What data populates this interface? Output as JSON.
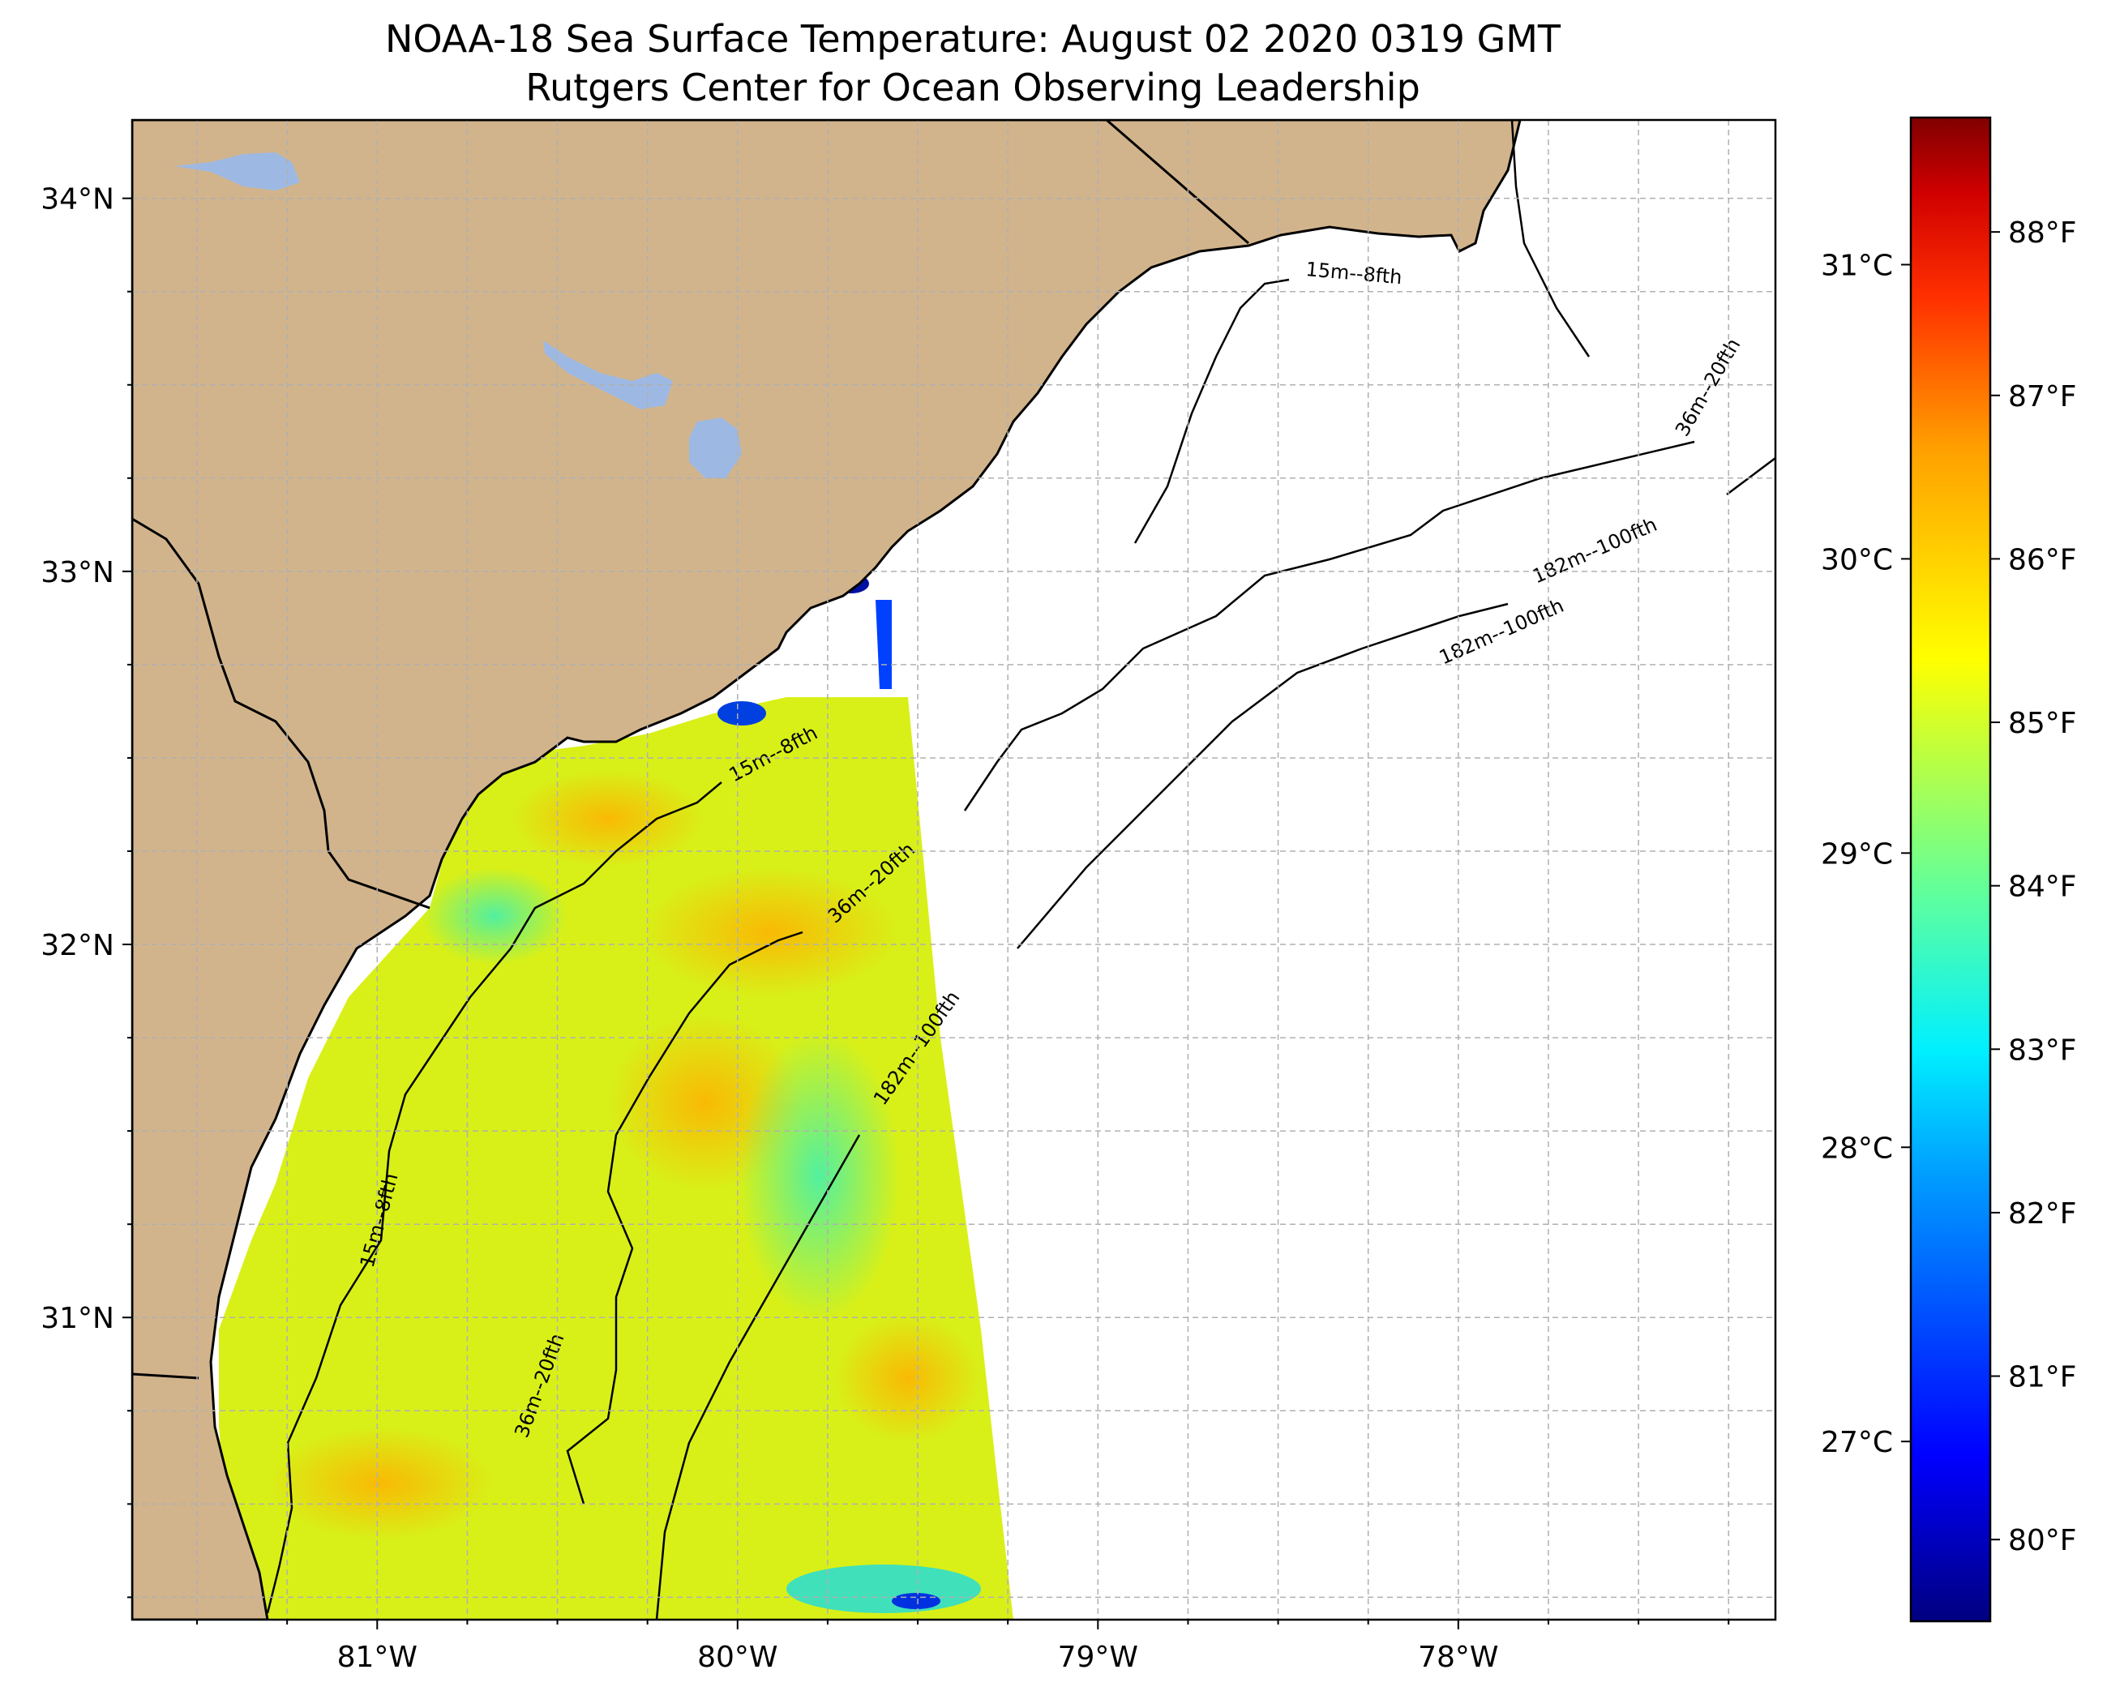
{
  "title": {
    "line1": "NOAA-18 Sea Surface Temperature: August 02 2020 0319 GMT",
    "line2": "Rutgers Center for Ocean Observing Leadership"
  },
  "map": {
    "lat_ticks": [
      "34°N",
      "33°N",
      "32°N",
      "31°N"
    ],
    "lon_ticks": [
      "81°W",
      "80°W",
      "79°W",
      "78°W"
    ],
    "lat_values": [
      34,
      33,
      32,
      31
    ],
    "lon_values": [
      -81,
      -80,
      -79,
      -78
    ],
    "extent": {
      "lon_min": -81.68,
      "lon_max": -77.12,
      "lat_min": 30.19,
      "lat_max": 34.21
    },
    "gridlines": "dashed, light gray",
    "colors": {
      "land": "#d2b48c",
      "lake": "#9db9e3",
      "ocean": "#ffffff",
      "coast": "#000000"
    },
    "contour_labels": [
      "15m--8fth",
      "15m--8fth",
      "15m--8fth",
      "36m--20fth",
      "36m--20fth",
      "36m--20fth",
      "182m--100fth",
      "182m--100fth",
      "182m--100fth"
    ]
  },
  "colorbar": {
    "celsius_ticks": [
      "31°C",
      "30°C",
      "29°C",
      "28°C",
      "27°C"
    ],
    "fahrenheit_ticks": [
      "88°F",
      "87°F",
      "86°F",
      "85°F",
      "84°F",
      "83°F",
      "82°F",
      "81°F",
      "80°F"
    ],
    "fahrenheit_range": [
      79.5,
      88.7
    ],
    "colormap": "jet",
    "colormap_stops": [
      "#000080",
      "#0000ff",
      "#00a0ff",
      "#00f0ff",
      "#5cffa0",
      "#c0ff3c",
      "#ffff00",
      "#ffa000",
      "#ff3000",
      "#d00000",
      "#800000"
    ]
  }
}
